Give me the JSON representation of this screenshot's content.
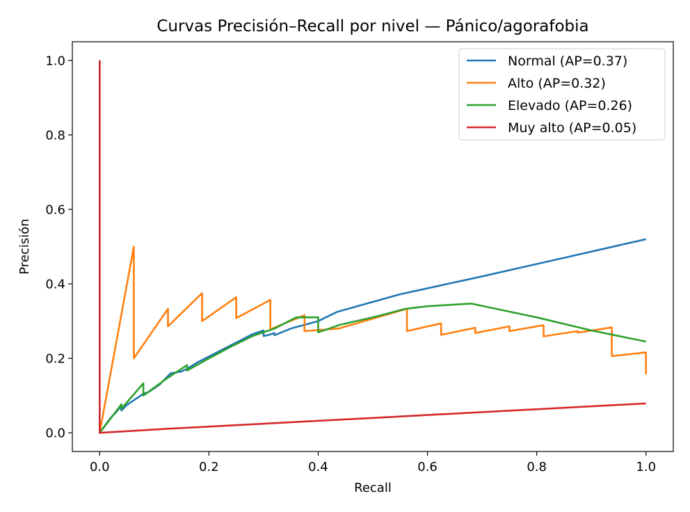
{
  "chart_data": {
    "type": "line",
    "title": "Curvas Precisión–Recall por nivel — Pánico/agorafobia",
    "xlabel": "Recall",
    "ylabel": "Precisión",
    "xlim": [
      -0.05,
      1.05
    ],
    "ylim": [
      -0.05,
      1.05
    ],
    "xticks": [
      "0.0",
      "0.2",
      "0.4",
      "0.6",
      "0.8",
      "1.0"
    ],
    "yticks": [
      "0.0",
      "0.2",
      "0.4",
      "0.6",
      "0.8",
      "1.0"
    ],
    "grid": false,
    "legend_position": "top-right",
    "series": [
      {
        "name": "Normal (AP=0.37)",
        "color": "#1f77b4",
        "points": [
          [
            0,
            1
          ],
          [
            0,
            0
          ],
          [
            0.01,
            0.02
          ],
          [
            0.02,
            0.04
          ],
          [
            0.03,
            0.055
          ],
          [
            0.038,
            0.07
          ],
          [
            0.04,
            0.06
          ],
          [
            0.05,
            0.075
          ],
          [
            0.06,
            0.085
          ],
          [
            0.07,
            0.095
          ],
          [
            0.08,
            0.105
          ],
          [
            0.09,
            0.11
          ],
          [
            0.1,
            0.12
          ],
          [
            0.11,
            0.13
          ],
          [
            0.12,
            0.145
          ],
          [
            0.13,
            0.16
          ],
          [
            0.15,
            0.165
          ],
          [
            0.16,
            0.172
          ],
          [
            0.18,
            0.19
          ],
          [
            0.2,
            0.205
          ],
          [
            0.22,
            0.22
          ],
          [
            0.24,
            0.235
          ],
          [
            0.26,
            0.25
          ],
          [
            0.28,
            0.265
          ],
          [
            0.3,
            0.275
          ],
          [
            0.3,
            0.26
          ],
          [
            0.31,
            0.263
          ],
          [
            0.32,
            0.268
          ],
          [
            0.32,
            0.262
          ],
          [
            0.35,
            0.28
          ],
          [
            0.4,
            0.3
          ],
          [
            0.435,
            0.325
          ],
          [
            0.55,
            0.372
          ],
          [
            0.7,
            0.42
          ],
          [
            0.85,
            0.47
          ],
          [
            1.0,
            0.52
          ]
        ]
      },
      {
        "name": "Alto (AP=0.32)",
        "color": "#ff7f0e",
        "points": [
          [
            0,
            0
          ],
          [
            0.0625,
            0.5
          ],
          [
            0.0625,
            0.2
          ],
          [
            0.125,
            0.333
          ],
          [
            0.125,
            0.286
          ],
          [
            0.1875,
            0.375
          ],
          [
            0.1875,
            0.3
          ],
          [
            0.25,
            0.364
          ],
          [
            0.25,
            0.308
          ],
          [
            0.3125,
            0.357
          ],
          [
            0.3125,
            0.278
          ],
          [
            0.375,
            0.316
          ],
          [
            0.375,
            0.273
          ],
          [
            0.4375,
            0.28
          ],
          [
            0.5625,
            0.333
          ],
          [
            0.5625,
            0.273
          ],
          [
            0.625,
            0.294
          ],
          [
            0.625,
            0.263
          ],
          [
            0.6875,
            0.282
          ],
          [
            0.6875,
            0.268
          ],
          [
            0.75,
            0.286
          ],
          [
            0.75,
            0.273
          ],
          [
            0.8125,
            0.289
          ],
          [
            0.8125,
            0.259
          ],
          [
            0.875,
            0.273
          ],
          [
            0.875,
            0.269
          ],
          [
            0.9375,
            0.283
          ],
          [
            0.9375,
            0.206
          ],
          [
            1.0,
            0.216
          ],
          [
            1.0,
            0.157
          ]
        ]
      },
      {
        "name": "Elevado (AP=0.26)",
        "color": "#2ca02c",
        "points": [
          [
            0,
            0
          ],
          [
            0.04,
            0.077
          ],
          [
            0.04,
            0.065
          ],
          [
            0.08,
            0.133
          ],
          [
            0.08,
            0.1
          ],
          [
            0.12,
            0.143
          ],
          [
            0.16,
            0.182
          ],
          [
            0.16,
            0.167
          ],
          [
            0.2,
            0.2
          ],
          [
            0.24,
            0.231
          ],
          [
            0.28,
            0.26
          ],
          [
            0.32,
            0.28
          ],
          [
            0.36,
            0.31
          ],
          [
            0.4,
            0.31
          ],
          [
            0.4,
            0.27
          ],
          [
            0.44,
            0.29
          ],
          [
            0.5,
            0.31
          ],
          [
            0.56,
            0.333
          ],
          [
            0.6,
            0.34
          ],
          [
            0.68,
            0.347
          ],
          [
            0.8,
            0.31
          ],
          [
            0.9,
            0.275
          ],
          [
            1.0,
            0.245
          ]
        ]
      },
      {
        "name": "Muy alto (AP=0.05)",
        "color": "#d62728",
        "points": [
          [
            0,
            1
          ],
          [
            0,
            0
          ],
          [
            0.125,
            0.011
          ],
          [
            0.5,
            0.04
          ],
          [
            1.0,
            0.079
          ]
        ]
      }
    ]
  }
}
